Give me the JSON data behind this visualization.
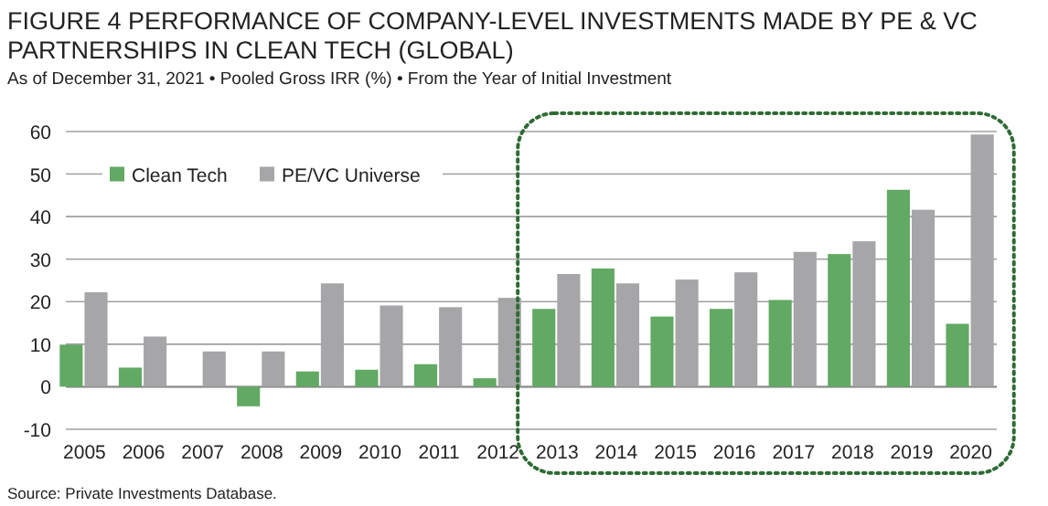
{
  "chart_data": {
    "type": "bar",
    "title": "FIGURE 4  PERFORMANCE OF COMPANY-LEVEL INVESTMENTS MADE BY PE & VC PARTNERSHIPS IN CLEAN TECH (GLOBAL)",
    "subtitle": "As of December 31, 2021 • Pooled Gross IRR (%) • From the Year of Initial Investment",
    "categories": [
      "2005",
      "2006",
      "2007",
      "2008",
      "2009",
      "2010",
      "2011",
      "2012",
      "2013",
      "2014",
      "2015",
      "2016",
      "2017",
      "2018",
      "2019",
      "2020"
    ],
    "series": [
      {
        "name": "Clean Tech",
        "color": "#62a964",
        "values": [
          9.9,
          4.5,
          0,
          -4.6,
          3.6,
          4.0,
          5.3,
          2.0,
          18.3,
          27.8,
          16.5,
          18.3,
          20.4,
          31.2,
          46.3,
          14.8
        ]
      },
      {
        "name": "PE/VC Universe",
        "color": "#a6a6a8",
        "values": [
          22.2,
          11.8,
          8.3,
          8.3,
          24.3,
          19.1,
          18.7,
          20.9,
          26.5,
          24.3,
          25.2,
          26.9,
          31.7,
          34.2,
          41.6,
          59.3
        ]
      }
    ],
    "ylim": [
      -10,
      60
    ],
    "yticks": [
      -10,
      0,
      10,
      20,
      30,
      40,
      50,
      60
    ],
    "grid": "y",
    "legend": "top left",
    "annotations": [
      "Source: Private Investments Database."
    ]
  }
}
